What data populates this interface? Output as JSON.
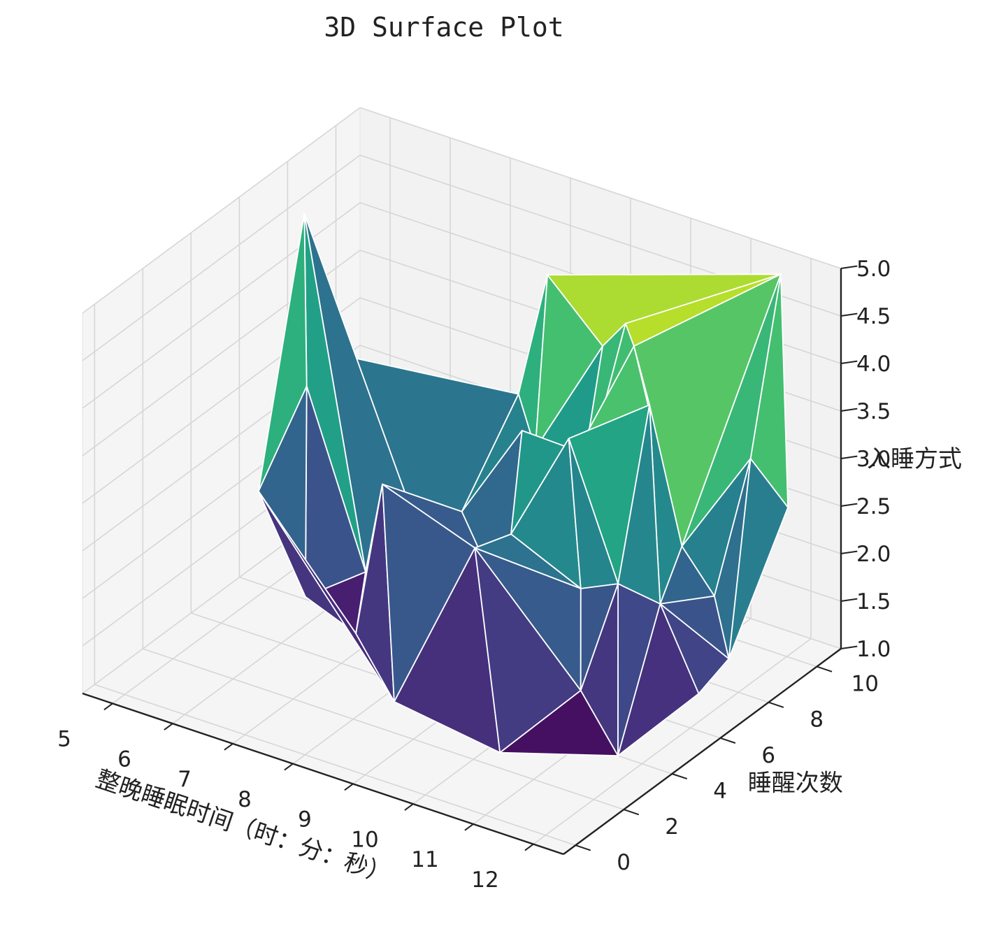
{
  "chart_data": {
    "type": "surface",
    "title": "3D Surface Plot",
    "xlabel": "整晚睡眠时间（时：分：秒）",
    "ylabel": "睡醒次数",
    "zlabel": "入睡方式",
    "x_ticks": [
      "5",
      "6",
      "7",
      "8",
      "9",
      "10",
      "11",
      "12"
    ],
    "y_ticks": [
      "0",
      "2",
      "4",
      "6",
      "8",
      "10"
    ],
    "z_ticks": [
      "1.0",
      "1.5",
      "2.0",
      "2.5",
      "3.0",
      "3.5",
      "4.0",
      "4.5",
      "5.0"
    ],
    "xlim": [
      4.5,
      12.5
    ],
    "ylim": [
      -0.5,
      11
    ],
    "zlim": [
      1,
      5
    ],
    "colormap": "viridis",
    "edge_color": "#ffffff",
    "pane_color": "#f2f2f2",
    "grid_color": "#d6d6d6",
    "points": [
      {
        "x": 5.2,
        "y": 6.5,
        "z": 3.5
      },
      {
        "x": 5.5,
        "y": 6.2,
        "z": 5.0
      },
      {
        "x": 5.7,
        "y": 5.8,
        "z": 3.3
      },
      {
        "x": 5.3,
        "y": 4.8,
        "z": 2.3
      },
      {
        "x": 6.0,
        "y": 5.0,
        "z": 1.3
      },
      {
        "x": 6.6,
        "y": 6.0,
        "z": 1.5
      },
      {
        "x": 7.2,
        "y": 5.2,
        "z": 2.7
      },
      {
        "x": 7.0,
        "y": 4.6,
        "z": 1.2
      },
      {
        "x": 7.4,
        "y": 7.4,
        "z": 1.0
      },
      {
        "x": 7.8,
        "y": 7.0,
        "z": 2.2
      },
      {
        "x": 8.1,
        "y": 8.6,
        "z": 3.2
      },
      {
        "x": 8.5,
        "y": 8.8,
        "z": 4.5
      },
      {
        "x": 8.7,
        "y": 7.8,
        "z": 2.9
      },
      {
        "x": 8.2,
        "y": 3.2,
        "z": 1.0
      },
      {
        "x": 8.9,
        "y": 6.2,
        "z": 1.5
      },
      {
        "x": 9.0,
        "y": 6.5,
        "z": 3.4
      },
      {
        "x": 9.1,
        "y": 4.3,
        "z": 2.6
      },
      {
        "x": 9.3,
        "y": 5.3,
        "z": 2.6
      },
      {
        "x": 9.5,
        "y": 8.6,
        "z": 4.0
      },
      {
        "x": 9.7,
        "y": 7.0,
        "z": 2.6
      },
      {
        "x": 9.8,
        "y": 6.8,
        "z": 3.3
      },
      {
        "x": 10.0,
        "y": 8.3,
        "z": 4.4
      },
      {
        "x": 10.1,
        "y": 5.7,
        "z": 3.7
      },
      {
        "x": 10.3,
        "y": 7.9,
        "z": 4.3
      },
      {
        "x": 10.2,
        "y": 2.6,
        "z": 1.0
      },
      {
        "x": 10.5,
        "y": 5.2,
        "z": 2.3
      },
      {
        "x": 10.8,
        "y": 7.3,
        "z": 3.9
      },
      {
        "x": 10.9,
        "y": 4.2,
        "z": 1.5
      },
      {
        "x": 11.0,
        "y": 5.5,
        "z": 2.4
      },
      {
        "x": 11.3,
        "y": 7.4,
        "z": 2.5
      },
      {
        "x": 11.6,
        "y": 4.0,
        "z": 1.0
      },
      {
        "x": 11.5,
        "y": 6.0,
        "z": 2.2
      },
      {
        "x": 11.9,
        "y": 10.0,
        "z": 5.0
      },
      {
        "x": 12.0,
        "y": 7.0,
        "z": 2.2
      },
      {
        "x": 12.2,
        "y": 8.0,
        "z": 3.5
      },
      {
        "x": 12.3,
        "y": 5.6,
        "z": 1.5
      },
      {
        "x": 12.4,
        "y": 6.6,
        "z": 1.7
      },
      {
        "x": 12.5,
        "y": 8.8,
        "z": 2.9
      }
    ]
  }
}
